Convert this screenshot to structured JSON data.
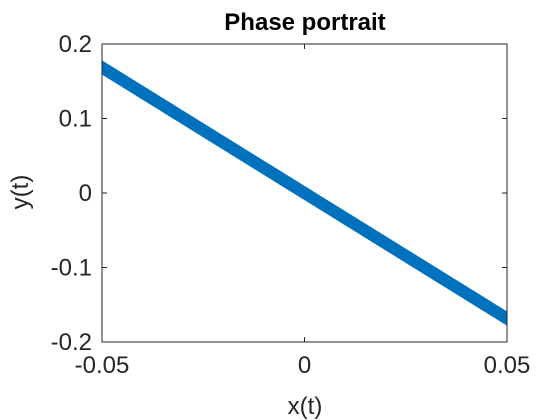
{
  "chart_data": {
    "type": "line",
    "title": "Phase portrait",
    "xlabel": "x(t)",
    "ylabel": "y(t)",
    "xlim": [
      -0.05,
      0.05
    ],
    "ylim": [
      -0.2,
      0.2
    ],
    "xticks": [
      -0.05,
      0,
      0.05
    ],
    "xtick_labels": [
      "-0.05",
      "0",
      "0.05"
    ],
    "yticks": [
      -0.2,
      -0.1,
      0,
      0.1,
      0.2
    ],
    "ytick_labels": [
      "-0.2",
      "-0.1",
      "0",
      "0.1",
      "0.2"
    ],
    "grid": false,
    "line_color": "#0072BD",
    "series": [
      {
        "parametric": "x = A*sin(w1*t), y = B*sin(w2*t) + k*x",
        "A": 0.05,
        "B": 0.0085,
        "k": -3.37,
        "w1": 1.0,
        "w2": 1.063,
        "t_range": [
          0,
          520
        ]
      }
    ]
  }
}
